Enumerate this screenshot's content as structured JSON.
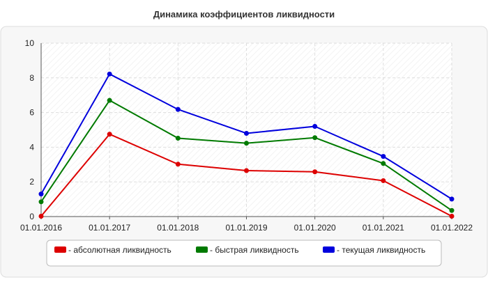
{
  "chart_data": {
    "type": "line",
    "title": "Динамика коэффициентов ликвидности",
    "xlabel": "",
    "ylabel": "",
    "categories": [
      "01.01.2016",
      "01.01.2017",
      "01.01.2018",
      "01.01.2019",
      "01.01.2020",
      "01.01.2021",
      "01.01.2022"
    ],
    "ylim": [
      0,
      10
    ],
    "yticks": [
      0,
      2,
      4,
      6,
      8,
      10
    ],
    "grid": true,
    "legend_position": "bottom",
    "series": [
      {
        "name": "- абсолютная ликвидность",
        "color": "#dd0000",
        "values": [
          0.02,
          4.75,
          3.02,
          2.65,
          2.58,
          2.07,
          0.02
        ]
      },
      {
        "name": "- быстрая ликвидность",
        "color": "#007a00",
        "values": [
          0.85,
          6.7,
          4.52,
          4.23,
          4.55,
          3.06,
          0.35
        ]
      },
      {
        "name": "- текущая ликвидность",
        "color": "#0000dd",
        "values": [
          1.3,
          8.22,
          6.18,
          4.8,
          5.2,
          3.47,
          1.01
        ]
      }
    ]
  }
}
